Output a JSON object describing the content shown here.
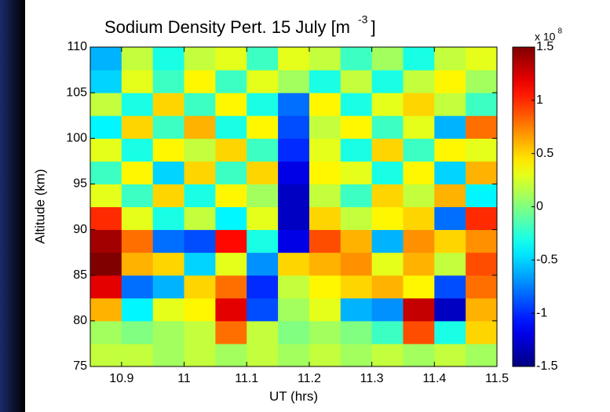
{
  "chart_data": {
    "type": "heatmap",
    "title": "Sodium Density Pert. 15 July [m",
    "title_superscript": "-3",
    "title_end": "]",
    "x_label": "UT (hrs)",
    "y_label": "Altitude (km)",
    "xlim": [
      10.85,
      11.5
    ],
    "xticks": [
      10.9,
      11,
      11.1,
      11.2,
      11.3,
      11.4,
      11.5
    ],
    "ylim": [
      75,
      110
    ],
    "yticks": [
      75,
      80,
      85,
      90,
      95,
      100,
      105,
      110
    ],
    "x": [
      10.875,
      10.925,
      10.975,
      11.025,
      11.075,
      11.125,
      11.175,
      11.225,
      11.275,
      11.325,
      11.375,
      11.425,
      11.475
    ],
    "y": [
      76.25,
      78.75,
      81.25,
      83.75,
      86.25,
      88.75,
      91.25,
      93.75,
      96.25,
      98.75,
      101.25,
      103.75,
      106.25,
      108.75
    ],
    "z": [
      [
        0.2,
        0.2,
        0.1,
        0.2,
        0.1,
        0.2,
        0.1,
        0.2,
        0.1,
        0.2,
        0.1,
        0.2,
        0.1
      ],
      [
        0.1,
        0.0,
        0.1,
        0.2,
        0.8,
        0.2,
        0.0,
        0.1,
        0.0,
        -0.2,
        0.9,
        -0.3,
        0.5
      ],
      [
        0.6,
        -0.4,
        0.3,
        0.4,
        1.2,
        -0.9,
        0.1,
        0.3,
        -0.6,
        -0.7,
        1.3,
        -1.3,
        0.6
      ],
      [
        1.2,
        -0.8,
        -0.6,
        0.5,
        0.8,
        -1.0,
        0.2,
        0.4,
        0.5,
        0.6,
        0.4,
        -0.9,
        0.8
      ],
      [
        1.5,
        0.6,
        0.5,
        -0.5,
        0.3,
        -0.7,
        0.5,
        0.6,
        0.7,
        0.3,
        0.6,
        0.2,
        0.9
      ],
      [
        1.4,
        0.8,
        -0.8,
        -0.9,
        1.1,
        -0.3,
        -1.2,
        0.9,
        0.6,
        -0.6,
        0.7,
        0.5,
        0.7
      ],
      [
        1.0,
        0.3,
        -0.3,
        0.2,
        -0.4,
        0.3,
        -1.3,
        0.5,
        0.2,
        0.4,
        0.5,
        -0.8,
        1.0
      ],
      [
        0.3,
        -0.2,
        0.5,
        -0.3,
        0.4,
        0.1,
        -1.3,
        0.2,
        -0.2,
        0.5,
        0.2,
        0.6,
        -0.4
      ],
      [
        -0.2,
        0.4,
        -0.5,
        0.5,
        -0.2,
        0.5,
        -1.2,
        0.4,
        0.3,
        -0.3,
        0.4,
        -0.5,
        0.6
      ],
      [
        0.3,
        -0.3,
        0.4,
        0.2,
        0.5,
        -0.2,
        -1.0,
        0.3,
        -0.3,
        0.5,
        -0.2,
        0.4,
        0.3
      ],
      [
        -0.4,
        0.5,
        -0.2,
        0.6,
        -0.3,
        0.4,
        -0.9,
        0.2,
        0.4,
        -0.2,
        0.3,
        -0.6,
        0.8
      ],
      [
        0.2,
        -0.3,
        0.5,
        -0.2,
        0.4,
        -0.3,
        -0.8,
        0.4,
        -0.3,
        0.3,
        0.5,
        0.2,
        -0.2
      ],
      [
        -0.5,
        0.3,
        -0.2,
        0.4,
        -0.2,
        0.3,
        0.1,
        -0.3,
        0.2,
        -0.3,
        0.2,
        0.4,
        0.1
      ],
      [
        -0.6,
        0.2,
        -0.3,
        0.2,
        0.3,
        -0.2,
        0.3,
        0.2,
        -0.2,
        0.1,
        -0.3,
        0.2,
        0.3
      ]
    ],
    "colormap": "jet",
    "colorbar": {
      "lim": [
        -1.5,
        1.5
      ],
      "ticks": [
        1.5,
        1,
        0.5,
        0,
        -0.5,
        -1,
        -1.5
      ],
      "multiplier_label": "x 10",
      "multiplier_exponent": "8"
    }
  }
}
